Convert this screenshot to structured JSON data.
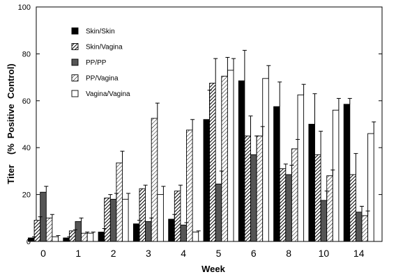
{
  "chart_data": {
    "type": "bar",
    "xlabel": "Week",
    "ylabel": "Titer    (%  Positive  Control)",
    "ylim": [
      0,
      100
    ],
    "yticks": [
      0,
      20,
      40,
      60,
      80,
      100
    ],
    "categories": [
      "0",
      "1",
      "2",
      "3",
      "4",
      "5",
      "6",
      "8",
      "10",
      "14"
    ],
    "legend_position": "top-left",
    "series": [
      {
        "name": "Skin/Skin",
        "style": "solid-black",
        "values": [
          1.5,
          1.5,
          4,
          7.5,
          9.5,
          52,
          68.5,
          57.5,
          50,
          58.5
        ],
        "errors": [
          0.5,
          0.5,
          1.5,
          1.5,
          2,
          12.5,
          13,
          10.5,
          13,
          2.5
        ]
      },
      {
        "name": "Skin/Vagina",
        "style": "diagonal-dense",
        "values": [
          9,
          4.5,
          18.5,
          22.5,
          21.5,
          67.5,
          45,
          31,
          37,
          28.5
        ],
        "errors": [
          1.5,
          0.5,
          1.5,
          1.5,
          2.5,
          10.5,
          8.5,
          2,
          10,
          9
        ]
      },
      {
        "name": "PP/PP",
        "style": "solid-grey",
        "values": [
          21,
          8.5,
          18,
          8.5,
          7,
          24.5,
          37,
          28.5,
          17.5,
          12.5
        ],
        "errors": [
          2.5,
          1.5,
          2.5,
          1.5,
          1,
          5.5,
          8,
          4,
          4,
          2.5
        ]
      },
      {
        "name": "PP/Vagina",
        "style": "diagonal-sparse",
        "values": [
          10,
          3.5,
          33.5,
          52.5,
          47.5,
          70.5,
          45,
          39.5,
          28,
          11
        ],
        "errors": [
          1.5,
          0.5,
          5,
          6.5,
          4.5,
          8,
          4,
          4,
          2.5,
          2
        ]
      },
      {
        "name": "Vagina/Vagina",
        "style": "white",
        "values": [
          2,
          3.5,
          18,
          20,
          4,
          73,
          69.5,
          62.5,
          56,
          46
        ],
        "errors": [
          0.5,
          0.5,
          2.5,
          3.5,
          0.5,
          5,
          5.5,
          4.5,
          5,
          5
        ]
      }
    ]
  },
  "colors": {
    "solid_black": "#000000",
    "solid_grey": "#555555",
    "bar_outline": "#000000",
    "background": "#ffffff"
  }
}
